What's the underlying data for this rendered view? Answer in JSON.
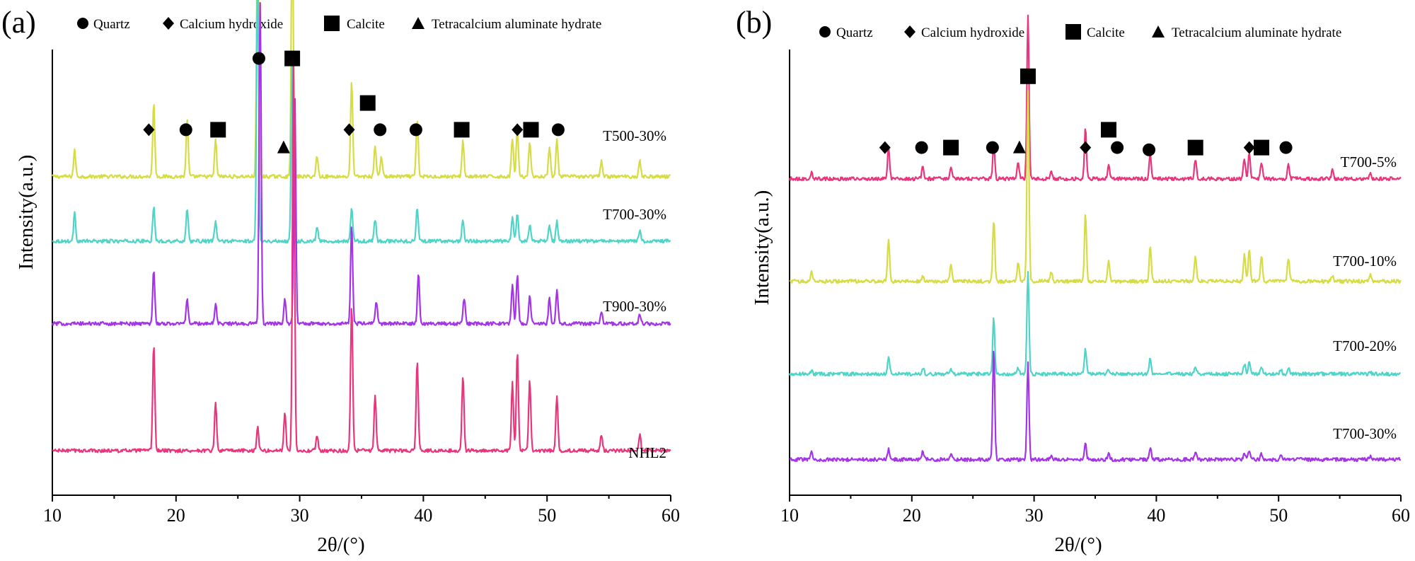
{
  "colors": {
    "pink": "#e8357c",
    "yellow": "#d6dc44",
    "cyan": "#4fd4c8",
    "purple": "#a434e8",
    "axis": "#000000",
    "background": "#ffffff"
  },
  "legend": [
    {
      "marker": "circle",
      "label": "Quartz"
    },
    {
      "marker": "diamond",
      "label": "Calcium hydroxide"
    },
    {
      "marker": "square",
      "label": "Calcite"
    },
    {
      "marker": "triangle",
      "label": "Tetracalcium aluminate hydrate"
    }
  ],
  "chart_data": [
    {
      "type": "line",
      "panel_label": "(a)",
      "xlabel": "2θ/(°)",
      "ylabel": "Intensity(a.u.)",
      "xlim": [
        10,
        60
      ],
      "ylim": [
        0,
        1
      ],
      "xticks": [
        10,
        20,
        30,
        40,
        50,
        60
      ],
      "grid": false,
      "legend_position": "top",
      "series": [
        {
          "name": "T500-30%",
          "color": "yellow",
          "baseline": 0.715,
          "peak_scale": 0.58,
          "peaks": [
            [
              11.8,
              0.1
            ],
            [
              18.2,
              0.28
            ],
            [
              20.9,
              0.22
            ],
            [
              23.2,
              0.14
            ],
            [
              26.6,
              1.0
            ],
            [
              29.4,
              1.0
            ],
            [
              31.4,
              0.08
            ],
            [
              34.2,
              0.37
            ],
            [
              36.1,
              0.12
            ],
            [
              36.6,
              0.08
            ],
            [
              39.5,
              0.22
            ],
            [
              43.2,
              0.14
            ],
            [
              47.2,
              0.15
            ],
            [
              47.6,
              0.19
            ],
            [
              48.6,
              0.14
            ],
            [
              50.2,
              0.12
            ],
            [
              50.8,
              0.14
            ],
            [
              54.4,
              0.06
            ],
            [
              57.5,
              0.06
            ]
          ]
        },
        {
          "name": "T700-30%",
          "color": "cyan",
          "baseline": 0.57,
          "peak_scale": 0.62,
          "peaks": [
            [
              11.8,
              0.1
            ],
            [
              18.2,
              0.12
            ],
            [
              20.9,
              0.12
            ],
            [
              23.2,
              0.07
            ],
            [
              26.6,
              1.0
            ],
            [
              29.4,
              0.7
            ],
            [
              31.4,
              0.05
            ],
            [
              34.2,
              0.12
            ],
            [
              36.1,
              0.08
            ],
            [
              39.5,
              0.12
            ],
            [
              43.2,
              0.08
            ],
            [
              47.2,
              0.09
            ],
            [
              47.6,
              0.1
            ],
            [
              48.6,
              0.06
            ],
            [
              50.2,
              0.06
            ],
            [
              50.8,
              0.07
            ],
            [
              57.5,
              0.04
            ]
          ]
        },
        {
          "name": "T900-30%",
          "color": "purple",
          "baseline": 0.385,
          "peak_scale": 0.72,
          "peaks": [
            [
              18.2,
              0.17
            ],
            [
              20.9,
              0.08
            ],
            [
              23.2,
              0.06
            ],
            [
              26.8,
              1.0
            ],
            [
              28.8,
              0.08
            ],
            [
              29.6,
              0.72
            ],
            [
              34.2,
              0.31
            ],
            [
              36.2,
              0.07
            ],
            [
              39.6,
              0.16
            ],
            [
              43.3,
              0.08
            ],
            [
              47.2,
              0.12
            ],
            [
              47.6,
              0.15
            ],
            [
              48.6,
              0.09
            ],
            [
              50.2,
              0.08
            ],
            [
              50.8,
              0.11
            ],
            [
              54.4,
              0.04
            ],
            [
              57.5,
              0.03
            ]
          ]
        },
        {
          "name": "NHL2",
          "color": "pink",
          "baseline": 0.1,
          "peak_scale": 0.89,
          "peaks": [
            [
              18.2,
              0.27
            ],
            [
              23.2,
              0.12
            ],
            [
              26.6,
              0.06
            ],
            [
              28.8,
              0.1
            ],
            [
              29.5,
              1.0
            ],
            [
              31.4,
              0.04
            ],
            [
              34.2,
              0.37
            ],
            [
              36.1,
              0.14
            ],
            [
              39.5,
              0.23
            ],
            [
              43.2,
              0.19
            ],
            [
              47.2,
              0.17
            ],
            [
              47.6,
              0.25
            ],
            [
              48.6,
              0.18
            ],
            [
              50.8,
              0.14
            ],
            [
              54.4,
              0.04
            ],
            [
              57.5,
              0.04
            ]
          ]
        }
      ],
      "annotations": [
        {
          "marker": "diamond",
          "x": 17.8,
          "y": 0.82
        },
        {
          "marker": "circle",
          "x": 20.8,
          "y": 0.82
        },
        {
          "marker": "square",
          "x": 23.4,
          "y": 0.82
        },
        {
          "marker": "circle",
          "x": 26.7,
          "y": 0.98
        },
        {
          "marker": "triangle",
          "x": 28.7,
          "y": 0.78
        },
        {
          "marker": "square",
          "x": 29.4,
          "y": 0.98
        },
        {
          "marker": "diamond",
          "x": 34.0,
          "y": 0.82
        },
        {
          "marker": "square",
          "x": 35.5,
          "y": 0.88
        },
        {
          "marker": "circle",
          "x": 36.5,
          "y": 0.82
        },
        {
          "marker": "circle",
          "x": 39.4,
          "y": 0.82
        },
        {
          "marker": "square",
          "x": 43.1,
          "y": 0.82
        },
        {
          "marker": "diamond",
          "x": 47.6,
          "y": 0.82
        },
        {
          "marker": "square",
          "x": 48.7,
          "y": 0.82
        },
        {
          "marker": "circle",
          "x": 50.9,
          "y": 0.82
        }
      ]
    },
    {
      "type": "line",
      "panel_label": "(b)",
      "xlabel": "2θ/(°)",
      "ylabel": "Intensity(a.u.)",
      "xlim": [
        10,
        60
      ],
      "ylim": [
        0,
        1
      ],
      "xticks": [
        10,
        20,
        30,
        40,
        50,
        60
      ],
      "grid": false,
      "legend_position": "top",
      "series": [
        {
          "name": "T700-5%",
          "color": "pink",
          "baseline": 0.71,
          "peak_scale": 0.37,
          "peaks": [
            [
              11.8,
              0.04
            ],
            [
              18.1,
              0.19
            ],
            [
              20.9,
              0.07
            ],
            [
              23.2,
              0.08
            ],
            [
              26.7,
              0.21
            ],
            [
              28.7,
              0.1
            ],
            [
              29.5,
              1.0
            ],
            [
              31.4,
              0.04
            ],
            [
              34.2,
              0.3
            ],
            [
              36.1,
              0.08
            ],
            [
              39.5,
              0.15
            ],
            [
              43.2,
              0.12
            ],
            [
              47.2,
              0.12
            ],
            [
              47.6,
              0.15
            ],
            [
              48.6,
              0.1
            ],
            [
              50.8,
              0.1
            ],
            [
              54.4,
              0.05
            ],
            [
              57.5,
              0.03
            ]
          ]
        },
        {
          "name": "T700-10%",
          "color": "yellow",
          "baseline": 0.48,
          "peak_scale": 0.43,
          "peaks": [
            [
              11.8,
              0.05
            ],
            [
              18.1,
              0.22
            ],
            [
              20.9,
              0.03
            ],
            [
              23.2,
              0.08
            ],
            [
              26.7,
              0.32
            ],
            [
              28.7,
              0.1
            ],
            [
              29.5,
              1.0
            ],
            [
              31.4,
              0.05
            ],
            [
              34.2,
              0.35
            ],
            [
              36.1,
              0.11
            ],
            [
              39.5,
              0.18
            ],
            [
              43.2,
              0.13
            ],
            [
              47.2,
              0.14
            ],
            [
              47.6,
              0.17
            ],
            [
              48.6,
              0.13
            ],
            [
              50.8,
              0.12
            ],
            [
              54.4,
              0.03
            ],
            [
              57.5,
              0.04
            ]
          ]
        },
        {
          "name": "T700-20%",
          "color": "cyan",
          "baseline": 0.272,
          "peak_scale": 0.23,
          "peaks": [
            [
              11.8,
              0.03
            ],
            [
              18.1,
              0.18
            ],
            [
              20.9,
              0.06
            ],
            [
              23.2,
              0.04
            ],
            [
              26.7,
              0.55
            ],
            [
              28.7,
              0.06
            ],
            [
              29.5,
              1.0
            ],
            [
              34.2,
              0.25
            ],
            [
              36.1,
              0.05
            ],
            [
              39.5,
              0.15
            ],
            [
              43.2,
              0.08
            ],
            [
              47.2,
              0.1
            ],
            [
              47.6,
              0.11
            ],
            [
              48.6,
              0.06
            ],
            [
              50.2,
              0.05
            ],
            [
              50.8,
              0.06
            ],
            [
              57.5,
              0.02
            ]
          ]
        },
        {
          "name": "T700-30%",
          "color": "purple",
          "baseline": 0.08,
          "peak_scale": 0.25,
          "peaks": [
            [
              11.8,
              0.07
            ],
            [
              18.1,
              0.09
            ],
            [
              20.9,
              0.07
            ],
            [
              23.2,
              0.04
            ],
            [
              26.7,
              1.0
            ],
            [
              29.5,
              0.87
            ],
            [
              31.4,
              0.03
            ],
            [
              34.2,
              0.15
            ],
            [
              36.1,
              0.05
            ],
            [
              39.5,
              0.11
            ],
            [
              43.2,
              0.06
            ],
            [
              47.2,
              0.06
            ],
            [
              47.6,
              0.08
            ],
            [
              48.6,
              0.05
            ],
            [
              50.2,
              0.04
            ],
            [
              57.5,
              0.03
            ]
          ]
        }
      ],
      "annotations": [
        {
          "marker": "diamond",
          "x": 17.8,
          "y": 0.78
        },
        {
          "marker": "circle",
          "x": 20.8,
          "y": 0.78
        },
        {
          "marker": "square",
          "x": 23.2,
          "y": 0.78
        },
        {
          "marker": "circle",
          "x": 26.6,
          "y": 0.78
        },
        {
          "marker": "triangle",
          "x": 28.8,
          "y": 0.78
        },
        {
          "marker": "square",
          "x": 29.5,
          "y": 0.94
        },
        {
          "marker": "diamond",
          "x": 34.2,
          "y": 0.78
        },
        {
          "marker": "square",
          "x": 36.1,
          "y": 0.82
        },
        {
          "marker": "circle",
          "x": 36.8,
          "y": 0.78
        },
        {
          "marker": "circle",
          "x": 39.4,
          "y": 0.775
        },
        {
          "marker": "square",
          "x": 43.2,
          "y": 0.78
        },
        {
          "marker": "diamond",
          "x": 47.6,
          "y": 0.78
        },
        {
          "marker": "square",
          "x": 48.6,
          "y": 0.78
        },
        {
          "marker": "circle",
          "x": 50.6,
          "y": 0.78
        }
      ]
    }
  ]
}
